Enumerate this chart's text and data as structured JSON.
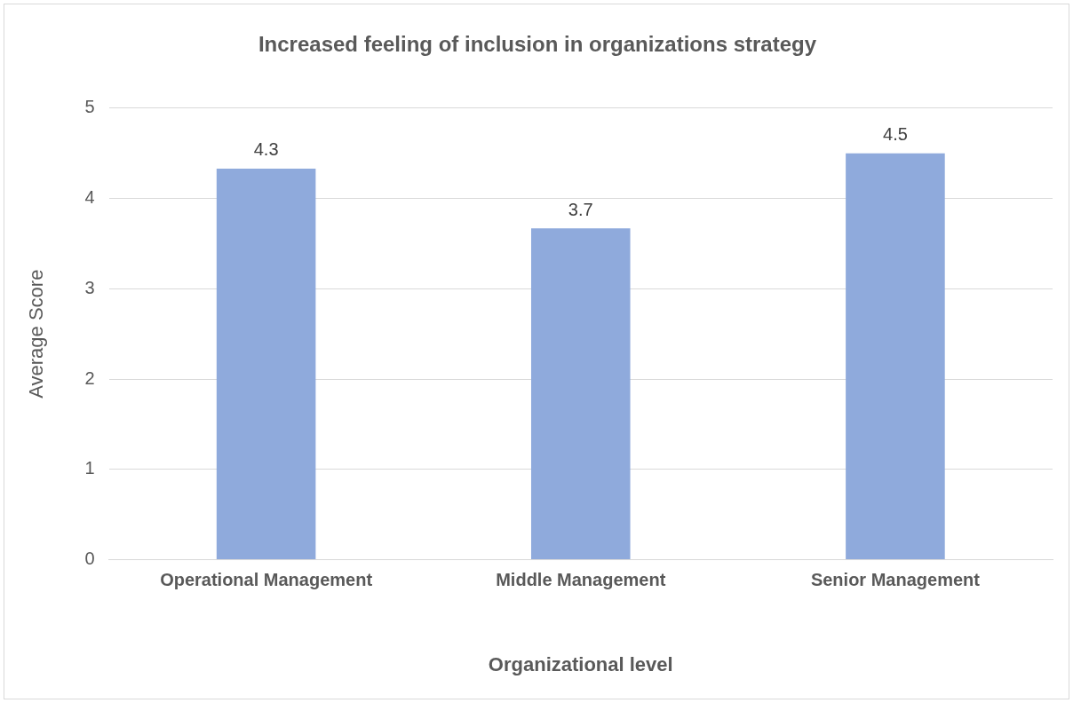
{
  "chart_data": {
    "type": "bar",
    "title": "Increased feeling of inclusion in organizations strategy",
    "xlabel": "Organizational level",
    "ylabel": "Average Score",
    "categories": [
      "Operational Management",
      "Middle Management",
      "Senior Management"
    ],
    "values": [
      4.33,
      3.67,
      4.5
    ],
    "value_labels": [
      "4.3",
      "3.7",
      "4.5"
    ],
    "color": "#8faadc",
    "ylim": [
      0,
      5
    ],
    "yticks": [
      0,
      1,
      2,
      3,
      4,
      5
    ],
    "grid": "y",
    "legend": false
  }
}
